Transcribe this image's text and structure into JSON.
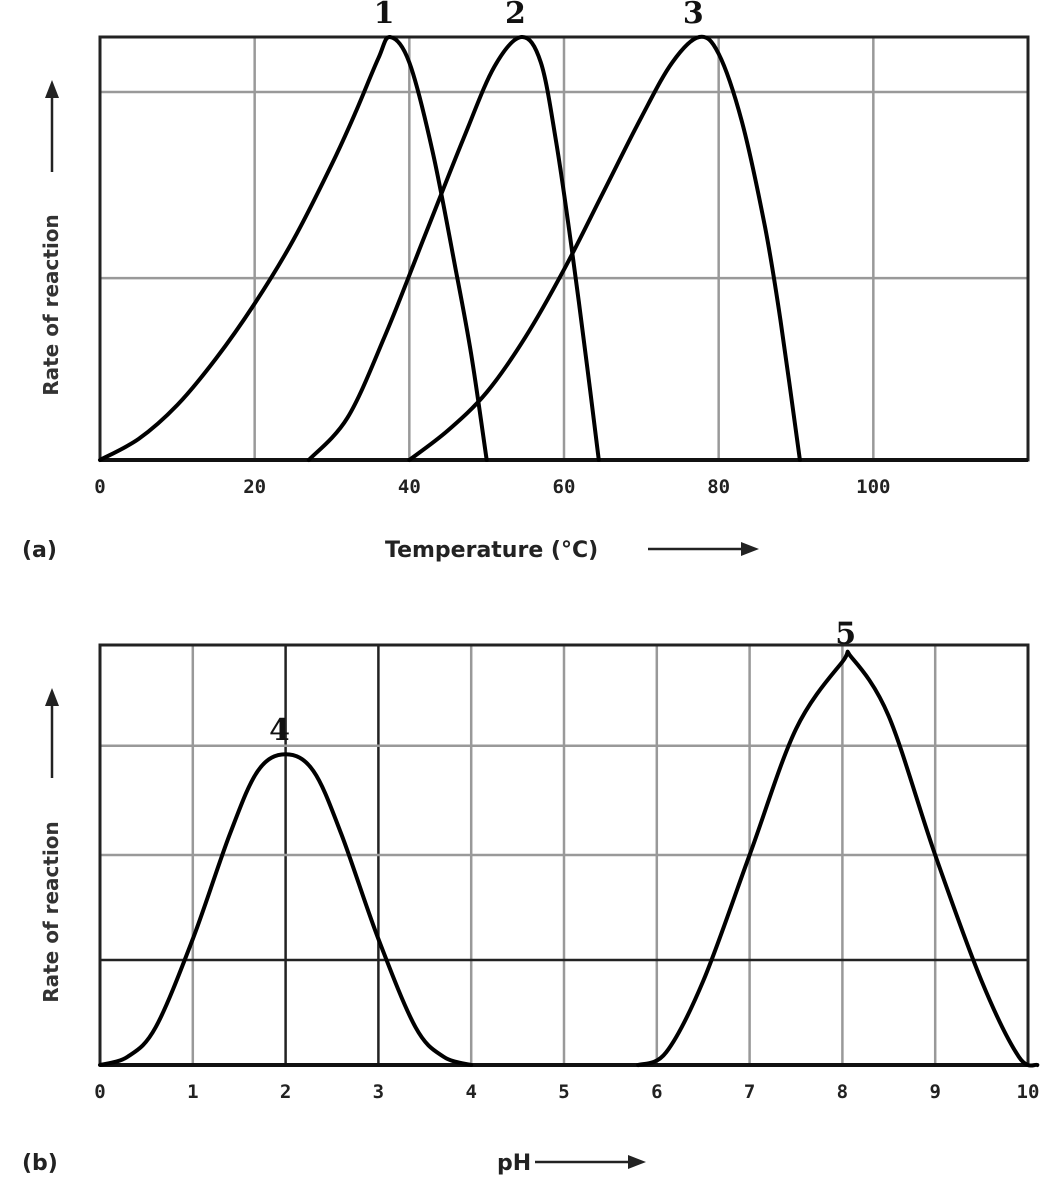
{
  "chart_data": [
    {
      "type": "line",
      "panel_label": "(a)",
      "xlabel": "Temperature (°C)",
      "ylabel": "Rate of reaction",
      "xlim": [
        0,
        120
      ],
      "ylim": [
        0,
        1
      ],
      "x_ticks": [
        "0",
        "20",
        "40",
        "60",
        "80",
        "100"
      ],
      "grid": true,
      "series": [
        {
          "name": "1",
          "points": [
            [
              0,
              0
            ],
            [
              5,
              0.05
            ],
            [
              10,
              0.13
            ],
            [
              15,
              0.24
            ],
            [
              20,
              0.37
            ],
            [
              25,
              0.52
            ],
            [
              30,
              0.7
            ],
            [
              33,
              0.82
            ],
            [
              36,
              0.95
            ],
            [
              37.5,
              1.0
            ],
            [
              40,
              0.94
            ],
            [
              43,
              0.73
            ],
            [
              46,
              0.45
            ],
            [
              48,
              0.25
            ],
            [
              50,
              0
            ]
          ]
        },
        {
          "name": "2",
          "points": [
            [
              27,
              0
            ],
            [
              32,
              0.1
            ],
            [
              37,
              0.3
            ],
            [
              42,
              0.53
            ],
            [
              47,
              0.76
            ],
            [
              51,
              0.93
            ],
            [
              54.5,
              1.0
            ],
            [
              57,
              0.94
            ],
            [
              59,
              0.75
            ],
            [
              61,
              0.5
            ],
            [
              63,
              0.22
            ],
            [
              64.5,
              0
            ]
          ]
        },
        {
          "name": "3",
          "points": [
            [
              40,
              0
            ],
            [
              45,
              0.07
            ],
            [
              50,
              0.16
            ],
            [
              55,
              0.29
            ],
            [
              60,
              0.45
            ],
            [
              65,
              0.63
            ],
            [
              70,
              0.81
            ],
            [
              74,
              0.94
            ],
            [
              77.5,
              1.0
            ],
            [
              80,
              0.96
            ],
            [
              83,
              0.8
            ],
            [
              86,
              0.55
            ],
            [
              88,
              0.33
            ],
            [
              90.5,
              0
            ]
          ]
        }
      ]
    },
    {
      "type": "line",
      "panel_label": "(b)",
      "xlabel": "pH",
      "ylabel": "Rate of reaction",
      "xlim": [
        0,
        10
      ],
      "ylim": [
        0,
        1
      ],
      "x_ticks": [
        "0",
        "1",
        "2",
        "3",
        "4",
        "5",
        "6",
        "7",
        "8",
        "9",
        "10"
      ],
      "grid": true,
      "series": [
        {
          "name": "4",
          "points": [
            [
              0,
              0
            ],
            [
              0.3,
              0.02
            ],
            [
              0.6,
              0.09
            ],
            [
              1,
              0.3
            ],
            [
              1.4,
              0.55
            ],
            [
              1.7,
              0.7
            ],
            [
              2,
              0.74
            ],
            [
              2.3,
              0.7
            ],
            [
              2.6,
              0.55
            ],
            [
              3,
              0.3
            ],
            [
              3.4,
              0.09
            ],
            [
              3.7,
              0.02
            ],
            [
              4,
              0
            ]
          ]
        },
        {
          "name": "5",
          "points": [
            [
              5.8,
              0
            ],
            [
              6.1,
              0.03
            ],
            [
              6.5,
              0.2
            ],
            [
              7,
              0.5
            ],
            [
              7.5,
              0.8
            ],
            [
              8,
              0.96
            ],
            [
              8.1,
              0.97
            ],
            [
              8.5,
              0.83
            ],
            [
              9,
              0.5
            ],
            [
              9.5,
              0.2
            ],
            [
              9.9,
              0.02
            ],
            [
              10.1,
              0
            ]
          ]
        }
      ]
    }
  ]
}
